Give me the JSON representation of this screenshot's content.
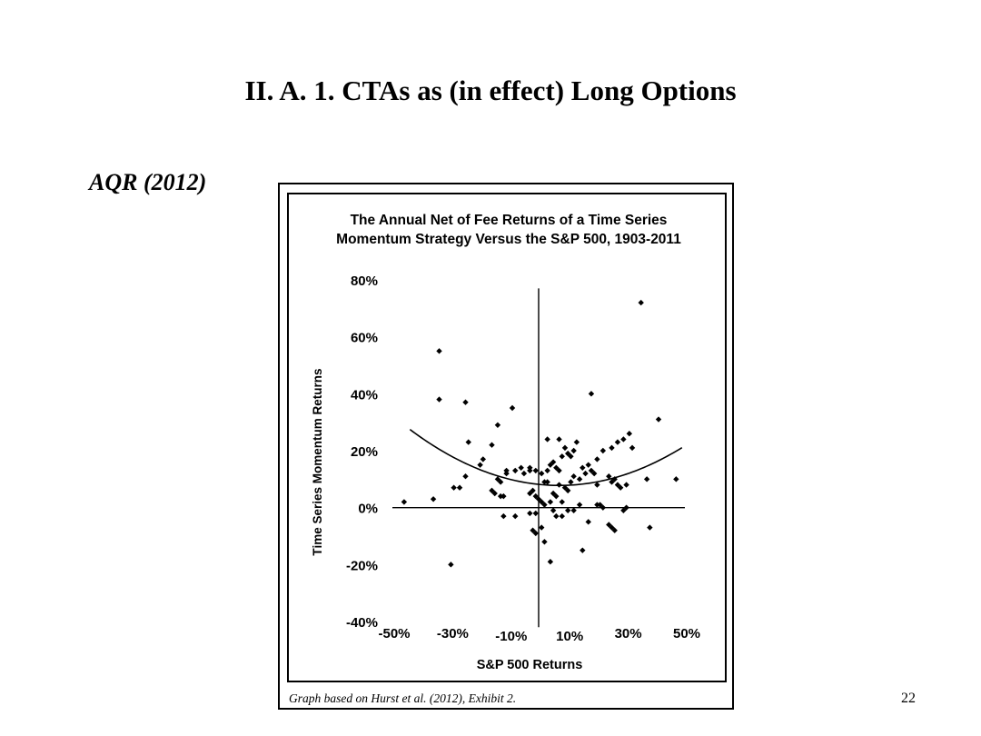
{
  "slide": {
    "title": "II.  A.  1. CTAs as (in effect) Long Options",
    "source_label": "AQR (2012)",
    "caption": "Graph based on Hurst et al. (2012), Exhibit 2.",
    "page_number": "22"
  },
  "chart_data": {
    "type": "scatter",
    "title_lines": [
      "The Annual Net of Fee Returns of a Time Series",
      "Momentum Strategy Versus the S&P 500, 1903-2011"
    ],
    "xlabel": "S&P 500 Returns",
    "ylabel": "Time Series Momentum Returns",
    "xlim": [
      -50,
      50
    ],
    "ylim": [
      -40,
      80
    ],
    "x_ticks": [
      {
        "value": -50,
        "label": "-50%"
      },
      {
        "value": -30,
        "label": "-30%"
      },
      {
        "value": -10,
        "label": "-10%"
      },
      {
        "value": 10,
        "label": "10%"
      },
      {
        "value": 30,
        "label": "30%"
      },
      {
        "value": 50,
        "label": "50%"
      }
    ],
    "y_ticks": [
      {
        "value": 80,
        "label": "80%"
      },
      {
        "value": 60,
        "label": "60%"
      },
      {
        "value": 40,
        "label": "40%"
      },
      {
        "value": 20,
        "label": "20%"
      },
      {
        "value": 0,
        "label": "0%"
      },
      {
        "value": -20,
        "label": "-20%"
      },
      {
        "value": -40,
        "label": "-40%"
      }
    ],
    "points": [
      [
        35,
        72
      ],
      [
        -34,
        55
      ],
      [
        -34,
        38
      ],
      [
        -25,
        37
      ],
      [
        -9,
        35
      ],
      [
        18,
        40
      ],
      [
        41,
        31
      ],
      [
        -46,
        2
      ],
      [
        -36,
        3
      ],
      [
        -30,
        -20
      ],
      [
        -29,
        7
      ],
      [
        -27,
        7
      ],
      [
        -24,
        23
      ],
      [
        -25,
        11
      ],
      [
        -20,
        15
      ],
      [
        -19,
        17
      ],
      [
        -16,
        22
      ],
      [
        -14,
        29
      ],
      [
        -16,
        6
      ],
      [
        -15,
        5
      ],
      [
        -13,
        4
      ],
      [
        -12,
        4
      ],
      [
        -14,
        10
      ],
      [
        -13,
        9
      ],
      [
        -11,
        12
      ],
      [
        -11,
        13
      ],
      [
        -8,
        13
      ],
      [
        -6,
        14
      ],
      [
        -5,
        12
      ],
      [
        -3,
        14
      ],
      [
        -3,
        13
      ],
      [
        -1,
        13
      ],
      [
        1,
        12
      ],
      [
        2,
        9
      ],
      [
        3,
        9
      ],
      [
        3,
        13
      ],
      [
        4,
        15
      ],
      [
        5,
        16
      ],
      [
        6,
        14
      ],
      [
        7,
        13
      ],
      [
        8,
        18
      ],
      [
        9,
        21
      ],
      [
        10,
        19
      ],
      [
        12,
        20
      ],
      [
        13,
        23
      ],
      [
        -3,
        5
      ],
      [
        -2,
        6
      ],
      [
        -1,
        4
      ],
      [
        0,
        3
      ],
      [
        1,
        2
      ],
      [
        2,
        1
      ],
      [
        4,
        2
      ],
      [
        5,
        5
      ],
      [
        6,
        4
      ],
      [
        7,
        8
      ],
      [
        8,
        2
      ],
      [
        9,
        7
      ],
      [
        10,
        6
      ],
      [
        11,
        9
      ],
      [
        12,
        11
      ],
      [
        14,
        10
      ],
      [
        15,
        14
      ],
      [
        17,
        15
      ],
      [
        18,
        13
      ],
      [
        19,
        12
      ],
      [
        20,
        8
      ],
      [
        21,
        1
      ],
      [
        22,
        0
      ],
      [
        24,
        11
      ],
      [
        25,
        9
      ],
      [
        26,
        10
      ],
      [
        27,
        8
      ],
      [
        28,
        7
      ],
      [
        -1,
        -2
      ],
      [
        1,
        -7
      ],
      [
        2,
        -12
      ],
      [
        4,
        -19
      ],
      [
        5,
        -1
      ],
      [
        6,
        -3
      ],
      [
        8,
        -3
      ],
      [
        10,
        -1
      ],
      [
        12,
        -1
      ],
      [
        14,
        1
      ],
      [
        15,
        -15
      ],
      [
        17,
        -5
      ],
      [
        20,
        1
      ],
      [
        24,
        -6
      ],
      [
        25,
        -7
      ],
      [
        26,
        -8
      ],
      [
        29,
        -1
      ],
      [
        30,
        0
      ],
      [
        -12,
        -3
      ],
      [
        -8,
        -3
      ],
      [
        -1,
        -9
      ],
      [
        -2,
        -8
      ],
      [
        -3,
        -2
      ],
      [
        3,
        24
      ],
      [
        7,
        24
      ],
      [
        11,
        18
      ],
      [
        16,
        12
      ],
      [
        20,
        17
      ],
      [
        22,
        20
      ],
      [
        25,
        21
      ],
      [
        27,
        23
      ],
      [
        29,
        24
      ],
      [
        31,
        26
      ],
      [
        32,
        21
      ],
      [
        30,
        8
      ],
      [
        37,
        10
      ],
      [
        38,
        -7
      ],
      [
        47,
        10
      ]
    ],
    "fit_curve": {
      "form": "quadratic",
      "a": 0.00754,
      "b": -0.1064,
      "c": 8.17,
      "x_range": [
        -44,
        49
      ]
    },
    "grid": false,
    "legend": "none"
  }
}
